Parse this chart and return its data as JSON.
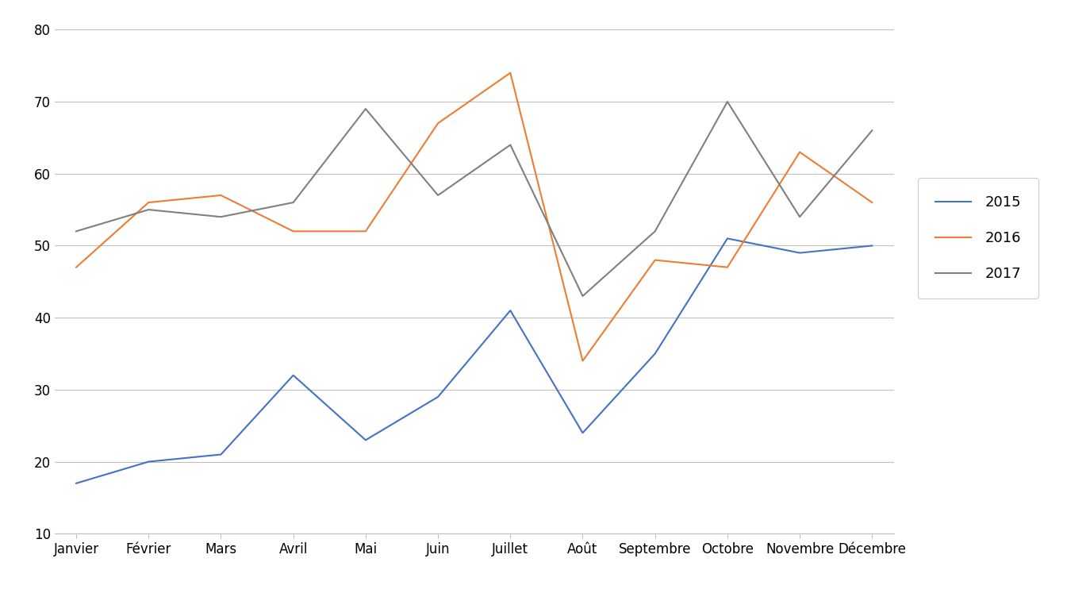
{
  "months": [
    "Janvier",
    "Février",
    "Mars",
    "Avril",
    "Mai",
    "Juin",
    "Juillet",
    "Août",
    "Septembre",
    "Octobre",
    "Novembre",
    "Décembre"
  ],
  "series_2015": [
    17,
    20,
    21,
    32,
    23,
    29,
    41,
    24,
    35,
    51,
    49,
    50
  ],
  "series_2016": [
    47,
    56,
    57,
    52,
    52,
    67,
    74,
    34,
    48,
    47,
    63,
    56
  ],
  "series_2017": [
    52,
    55,
    54,
    56,
    69,
    57,
    64,
    43,
    52,
    70,
    54,
    66
  ],
  "color_2015": "#4472C4",
  "color_2016": "#ED7D31",
  "color_2017": "#808080",
  "legend_labels": [
    "2015",
    "2016",
    "2017"
  ],
  "ylim": [
    10,
    80
  ],
  "yticks": [
    10,
    20,
    30,
    40,
    50,
    60,
    70,
    80
  ],
  "background_color": "#ffffff",
  "grid_color": "#c0c0c0"
}
